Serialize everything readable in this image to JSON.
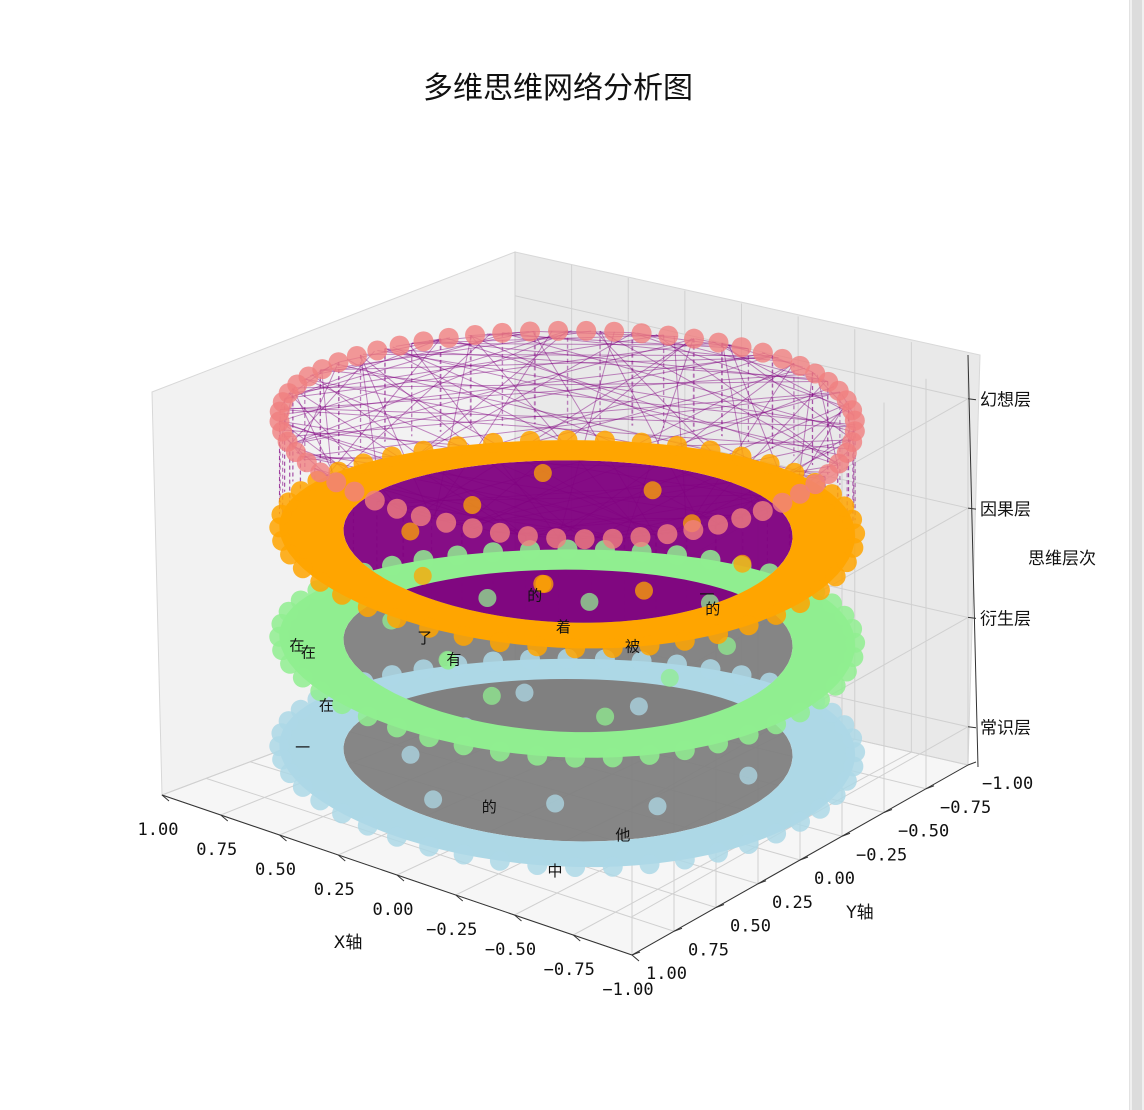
{
  "chart_data": {
    "type": "scatter",
    "title": "多维思维网络分析图",
    "xlabel": "X轴",
    "ylabel": "Y轴",
    "zlabel": "思维层次",
    "xlim": [
      -1.0,
      1.0
    ],
    "ylim": [
      -1.0,
      1.0
    ],
    "x_ticks": [
      "1.00",
      "0.75",
      "0.50",
      "0.25",
      "0.00",
      "−0.25",
      "−0.50",
      "−0.75",
      "−1.00"
    ],
    "y_ticks": [
      "−1.00",
      "−0.75",
      "−0.50",
      "−0.25",
      "0.00",
      "0.25",
      "0.50",
      "0.75",
      "1.00"
    ],
    "z_ticks": [
      "常识层",
      "衍生层",
      "因果层",
      "幻想层"
    ],
    "grid": true,
    "layers": [
      {
        "name": "常识层",
        "level": 0,
        "color": "#add8e6",
        "radius_range": [
          0.8,
          1.0
        ],
        "connection_color": "#808080"
      },
      {
        "name": "衍生层",
        "level": 1,
        "color": "#90ee90",
        "radius_range": [
          0.8,
          1.0
        ],
        "connection_color": "#808080"
      },
      {
        "name": "因果层",
        "level": 2,
        "color": "#ffa500",
        "radius_range": [
          0.8,
          1.0
        ],
        "connection_color": "#800080"
      },
      {
        "name": "幻想层",
        "level": 3,
        "color": "#f08080",
        "radius_range": [
          1.0,
          1.0
        ],
        "connection_color": "#800080"
      }
    ],
    "word_labels": [
      "他",
      "的",
      "中",
      "在",
      "一",
      "了",
      "在",
      "有",
      "被",
      "着",
      "的",
      "一",
      "在",
      "的"
    ]
  }
}
